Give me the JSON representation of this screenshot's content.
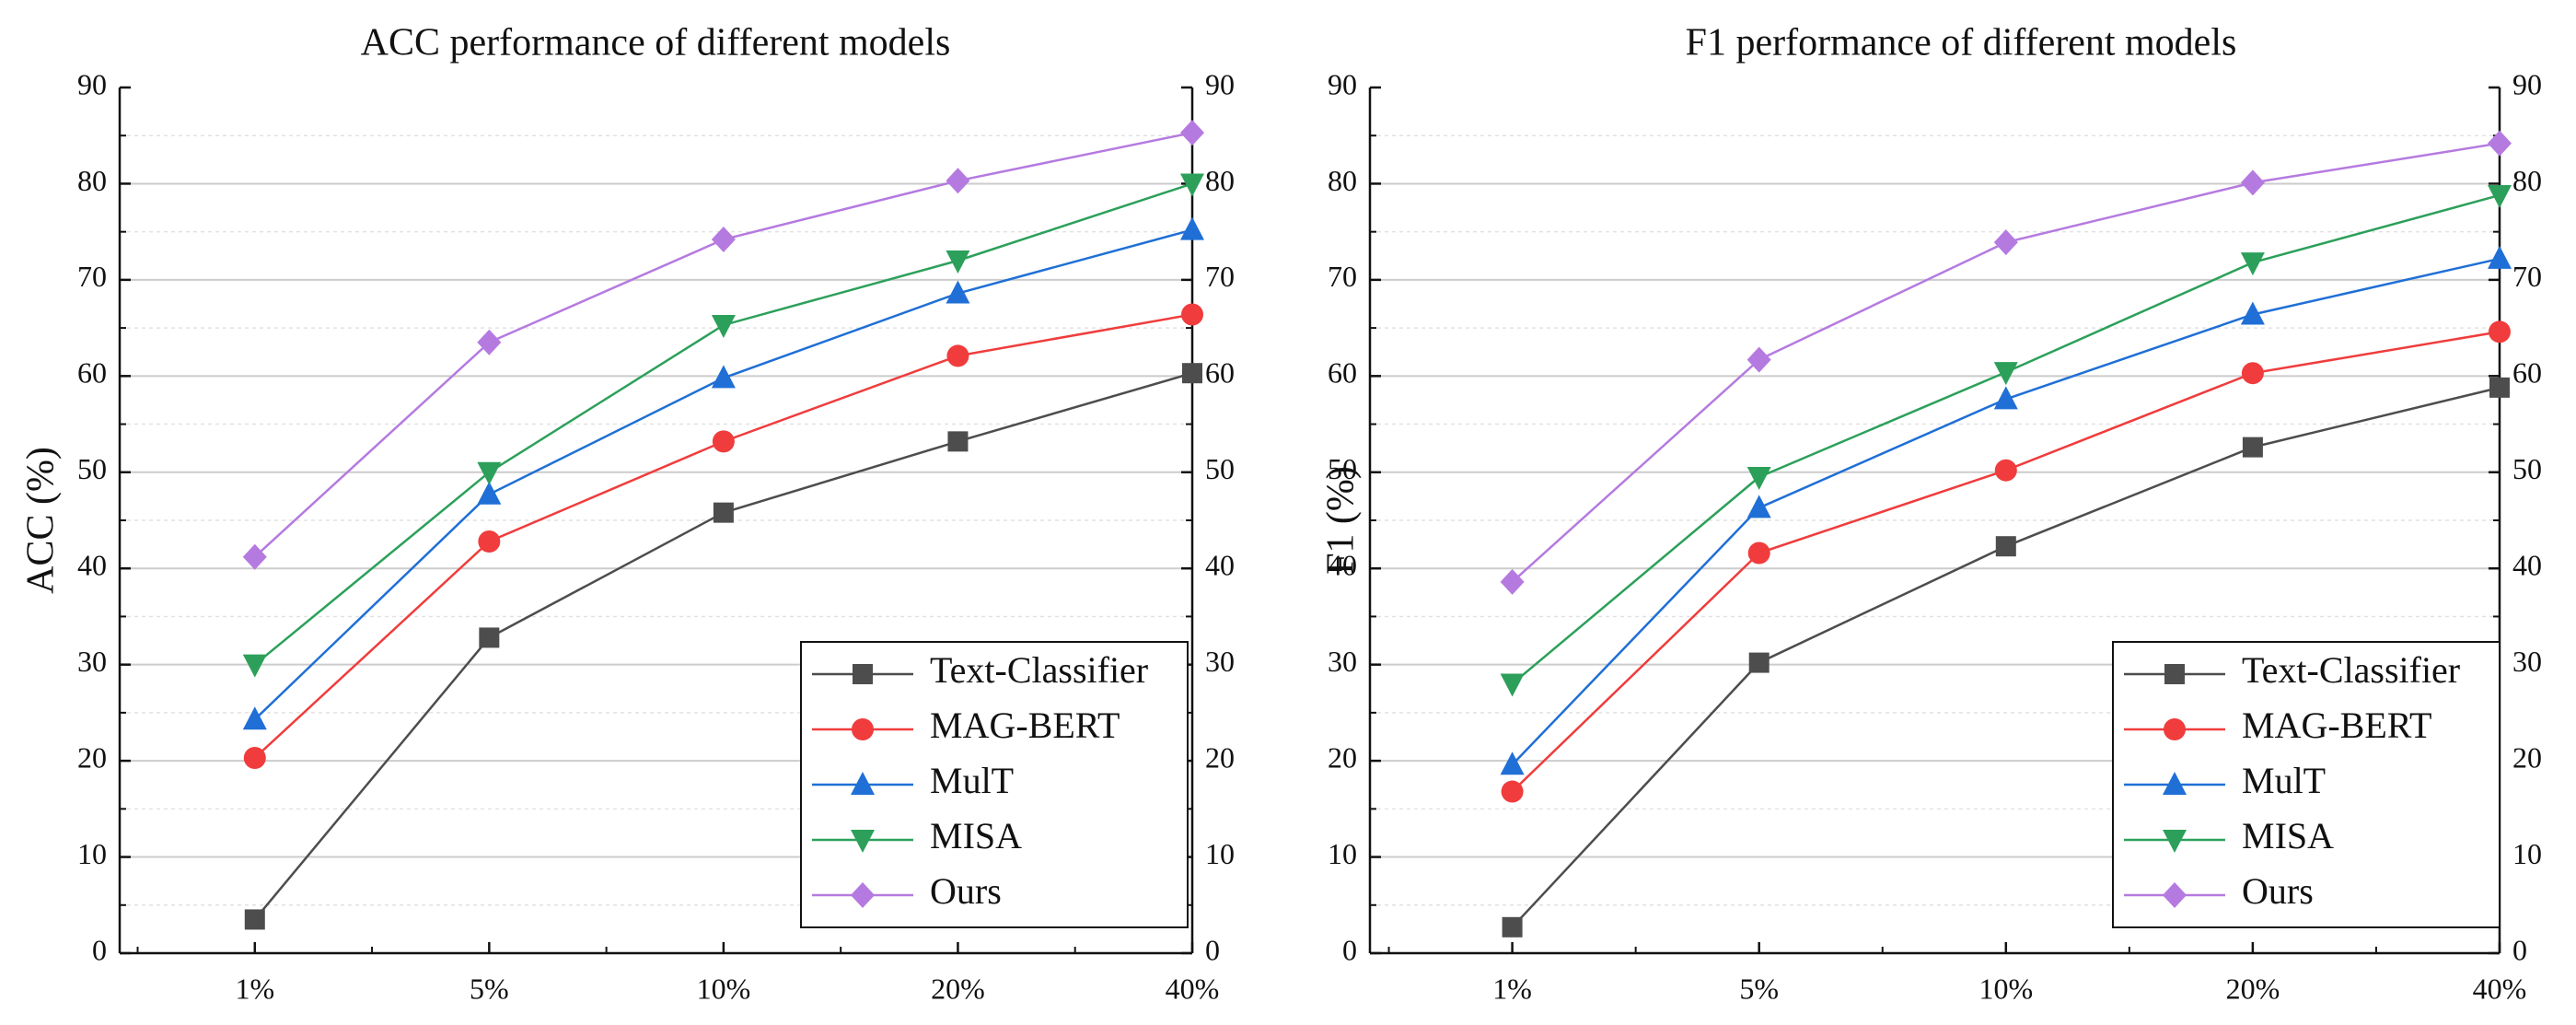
{
  "chart_data": [
    {
      "type": "line",
      "title": "ACC performance of different models",
      "xlabel": "",
      "ylabel": "ACC (%)",
      "categories": [
        "1%",
        "5%",
        "10%",
        "20%",
        "40%"
      ],
      "ylim": [
        0,
        90
      ],
      "yticks": [
        0,
        10,
        20,
        30,
        40,
        50,
        60,
        70,
        80,
        90
      ],
      "grid": true,
      "right_axis": true,
      "legend_position": "bottom-right",
      "series": [
        {
          "name": "Text-Classifier",
          "values": [
            3.5,
            32.8,
            45.8,
            53.2,
            60.3
          ],
          "color": "#4d4d4d",
          "marker": "square"
        },
        {
          "name": "MAG-BERT",
          "values": [
            20.3,
            42.8,
            53.2,
            62.1,
            66.4
          ],
          "color": "#f03c3c",
          "marker": "circle"
        },
        {
          "name": "MulT",
          "values": [
            24.3,
            47.7,
            59.8,
            68.6,
            75.2
          ],
          "color": "#1f6fd6",
          "marker": "triangle-up"
        },
        {
          "name": "MISA",
          "values": [
            30.0,
            50.0,
            65.3,
            72.0,
            80.0
          ],
          "color": "#2ca05a",
          "marker": "triangle-down"
        },
        {
          "name": "Ours",
          "values": [
            41.2,
            63.5,
            74.2,
            80.3,
            85.3
          ],
          "color": "#b57ae0",
          "marker": "diamond"
        }
      ]
    },
    {
      "type": "line",
      "title": "F1 performance of different models",
      "xlabel": "",
      "ylabel": "F1 (%)",
      "categories": [
        "1%",
        "5%",
        "10%",
        "20%",
        "40%"
      ],
      "ylim": [
        0,
        90
      ],
      "yticks": [
        0,
        10,
        20,
        30,
        40,
        50,
        60,
        70,
        80,
        90
      ],
      "grid": true,
      "right_axis": true,
      "legend_position": "bottom-right",
      "series": [
        {
          "name": "Text-Classifier",
          "values": [
            2.7,
            30.2,
            42.3,
            52.6,
            58.8
          ],
          "color": "#4d4d4d",
          "marker": "square"
        },
        {
          "name": "MAG-BERT",
          "values": [
            16.8,
            41.6,
            50.2,
            60.3,
            64.6
          ],
          "color": "#f03c3c",
          "marker": "circle"
        },
        {
          "name": "MulT",
          "values": [
            19.6,
            46.3,
            57.6,
            66.4,
            72.2
          ],
          "color": "#1f6fd6",
          "marker": "triangle-up"
        },
        {
          "name": "MISA",
          "values": [
            28.0,
            49.5,
            60.4,
            71.8,
            78.8
          ],
          "color": "#2ca05a",
          "marker": "triangle-down"
        },
        {
          "name": "Ours",
          "values": [
            38.6,
            61.7,
            73.9,
            80.1,
            84.2
          ],
          "color": "#b57ae0",
          "marker": "diamond"
        }
      ]
    }
  ]
}
